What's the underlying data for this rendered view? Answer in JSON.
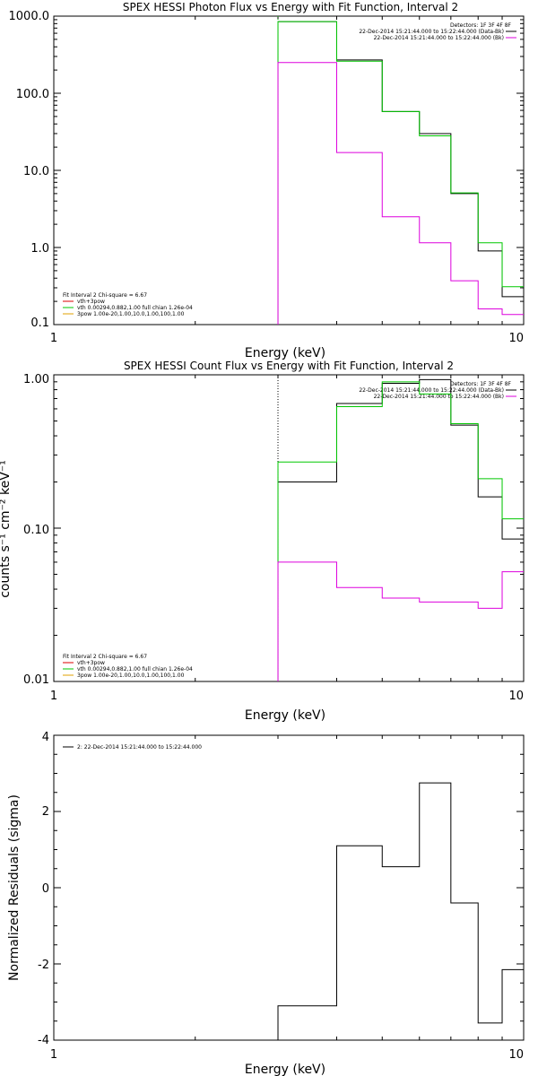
{
  "chart_data": [
    {
      "type": "line",
      "title": "SPEX HESSI Photon Flux vs Energy with Fit Function, Interval 2",
      "xlabel": "Energy (keV)",
      "ylabel": "",
      "xscale": "log",
      "yscale": "log",
      "xlim": [
        1,
        10
      ],
      "ylim": [
        0.1,
        1000
      ],
      "x_ticks": [
        "1",
        "10"
      ],
      "y_ticks": [
        {
          "v": 1000,
          "label": "1000.0"
        },
        {
          "v": 100,
          "label": "100.0"
        },
        {
          "v": 10,
          "label": "10.0"
        },
        {
          "v": 1,
          "label": "1.0"
        },
        {
          "v": 0.1,
          "label": "0.1"
        }
      ],
      "vline_x": 3,
      "vline_color": "#00b000",
      "edges": [
        3,
        4,
        5,
        6,
        7,
        8,
        9,
        10
      ],
      "series": [
        {
          "name": "",
          "color": "#000000",
          "values": [
            850,
            270,
            58,
            30,
            5,
            0.9,
            0.23
          ]
        },
        {
          "name": "",
          "color": "#00c800",
          "values": [
            850,
            260,
            58,
            28,
            5.1,
            1.15,
            0.31
          ]
        },
        {
          "name": "",
          "color": "#dd00dd",
          "values": [
            250,
            17,
            2.5,
            1.15,
            0.37,
            0.16,
            0.135
          ]
        }
      ],
      "legend_topright": [
        {
          "text": "Detectors: 1F 3F 4F 8F",
          "color": ""
        },
        {
          "text": "22-Dec-2014 15:21:44.000 to 15:22:44.000 (Data-Bk)",
          "color": "#000000"
        },
        {
          "text": "22-Dec-2014 15:21:44.000 to 15:22:44.000 (Bk)",
          "color": "#dd00dd"
        }
      ],
      "legend_bottomleft": [
        {
          "text": "Fit Interval 2   Chi-square = 6.67",
          "color": ""
        },
        {
          "text": "vth+3pow",
          "color": "#dd0000"
        },
        {
          "text": "vth 0.00294,0.882,1.00  full chian 1.26e-04",
          "color": "#00c800"
        },
        {
          "text": "3pow 1.00e-20,1.00,10.0,1.00,100,1.00",
          "color": "#e0a000"
        }
      ]
    },
    {
      "type": "line",
      "title": "SPEX HESSI Count Flux vs Energy with Fit Function, Interval 2",
      "xlabel": "Energy (keV)",
      "ylabel": "counts s⁻¹ cm⁻² keV⁻¹",
      "xscale": "log",
      "yscale": "log",
      "xlim": [
        1,
        10
      ],
      "ylim": [
        0.01,
        1
      ],
      "x_ticks": [
        "1",
        "10"
      ],
      "y_ticks": [
        {
          "v": 1,
          "label": "1.00"
        },
        {
          "v": 0.1,
          "label": "0.10"
        },
        {
          "v": 0.01,
          "label": "0.01"
        }
      ],
      "vline_x": 3,
      "vline_color": "#000000",
      "edges": [
        3,
        4,
        5,
        6,
        7,
        8,
        9,
        10
      ],
      "series": [
        {
          "name": "",
          "color": "#000000",
          "values": [
            0.2,
            0.65,
            0.88,
            0.93,
            0.47,
            0.16,
            0.085
          ]
        },
        {
          "name": "",
          "color": "#00c800",
          "values": [
            0.27,
            0.62,
            0.9,
            0.75,
            0.48,
            0.21,
            0.115
          ]
        },
        {
          "name": "",
          "color": "#dd00dd",
          "values": [
            0.06,
            0.041,
            0.035,
            0.033,
            0.033,
            0.03,
            0.052
          ]
        }
      ],
      "legend_topright": [
        {
          "text": "Detectors: 1F 3F 4F 8F",
          "color": ""
        },
        {
          "text": "22-Dec-2014 15:21:44.000 to 15:22:44.000 (Data-Bk)",
          "color": "#000000"
        },
        {
          "text": "22-Dec-2014 15:21:44.000 to 15:22:44.000 (Bk)",
          "color": "#dd00dd"
        }
      ],
      "legend_bottomleft": [
        {
          "text": "Fit Interval 2   Chi-square = 6.67",
          "color": ""
        },
        {
          "text": "vth+3pow",
          "color": "#dd0000"
        },
        {
          "text": "vth 0.00294,0.882,1.00  full chian 1.26e-04",
          "color": "#00c800"
        },
        {
          "text": "3pow 1.00e-20,1.00,10.0,1.00,100,1.00",
          "color": "#e0a000"
        }
      ]
    },
    {
      "type": "line",
      "title": "",
      "xlabel": "Energy (keV)",
      "ylabel": "Normalized Residuals (sigma)",
      "xscale": "log",
      "yscale": "linear",
      "xlim": [
        1,
        10
      ],
      "ylim": [
        -4,
        4
      ],
      "x_ticks": [
        "1",
        "10"
      ],
      "y_ticks": [
        {
          "v": 4,
          "label": "4"
        },
        {
          "v": 2,
          "label": "2"
        },
        {
          "v": 0,
          "label": "0"
        },
        {
          "v": -2,
          "label": "-2"
        },
        {
          "v": -4,
          "label": "-4"
        }
      ],
      "edges": [
        3,
        4,
        5,
        6,
        7,
        8,
        9,
        10
      ],
      "series": [
        {
          "name": "",
          "color": "#000000",
          "values": [
            -3.1,
            1.1,
            0.55,
            2.75,
            -0.4,
            -3.55,
            -2.15
          ]
        }
      ],
      "legend_topleft": [
        {
          "text": "2: 22-Dec-2014 15:21:44.000 to 15:22:44.000",
          "color": "#000000"
        }
      ]
    }
  ]
}
